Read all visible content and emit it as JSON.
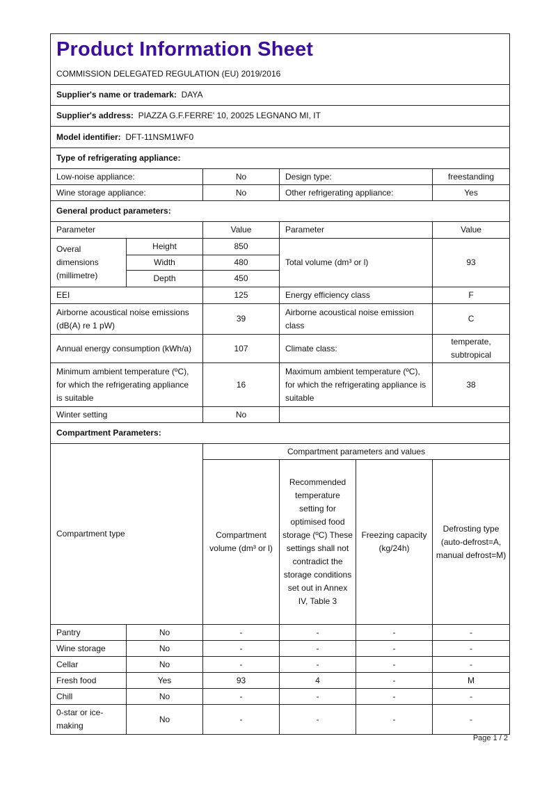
{
  "header": {
    "title": "Product Information Sheet",
    "regulation": "COMMISSION DELEGATED REGULATION (EU) 2019/2016"
  },
  "supplier": {
    "name_label": "Supplier's name or trademark:",
    "name": "DAYA",
    "address_label": "Supplier's address:",
    "address": "PIAZZA G.F.FERRE' 10, 20025 LEGNANO MI, IT",
    "model_label": "Model identifier:",
    "model": "DFT-11NSM1WF0"
  },
  "type": {
    "heading": "Type of refrigerating appliance:",
    "low_noise_label": "Low-noise appliance:",
    "low_noise": "No",
    "design_label": "Design type:",
    "design": "freestanding",
    "wine_label": "Wine storage appliance:",
    "wine": "No",
    "other_label": "Other refrigerating appliance:",
    "other": "Yes"
  },
  "general": {
    "heading": "General product parameters:",
    "col_parameter": "Parameter",
    "col_value": "Value",
    "dims_label": "Overal dimensions (millimetre)",
    "height_label": "Height",
    "height": "850",
    "width_label": "Width",
    "width": "480",
    "depth_label": "Depth",
    "depth": "450",
    "volume_label": "Total volume (dm³ or l)",
    "volume": "93",
    "eei_label": "EEI",
    "eei": "125",
    "eec_label": "Energy efficiency class",
    "eec": "F",
    "noise_label": "Airborne acoustical noise emissions (dB(A) re 1 pW)",
    "noise": "39",
    "noise_class_label": "Airborne acoustical noise emission class",
    "noise_class": "C",
    "aec_label": "Annual energy consumption (kWh/a)",
    "aec": "107",
    "climate_label": "Climate class:",
    "climate": "temperate, subtropical",
    "min_temp_label": "Minimum ambient temperature (ºC), for which the refrigerating appliance is suitable",
    "min_temp": "16",
    "max_temp_label": "Maximum ambient temperature (ºC), for which the refrigerating appliance is suitable",
    "max_temp": "38",
    "winter_label": "Winter setting",
    "winter": "No"
  },
  "compartments": {
    "heading": "Compartment Parameters:",
    "type_header": "Compartment type",
    "group_header": "Compartment parameters and values",
    "col_volume": "Compartment volume (dm³ or l)",
    "col_temp": "Recommended temperature setting for optimised food storage (ºC) These settings shall not contradict the storage conditions set out in Annex IV, Table 3",
    "col_freezing": "Freezing capacity (kg/24h)",
    "col_defrost": "Defrosting type (auto-defrost=A, manual defrost=M)",
    "rows": [
      {
        "type": "Pantry",
        "present": "No",
        "volume": "-",
        "temp": "-",
        "freezing": "-",
        "defrost": "-"
      },
      {
        "type": "Wine storage",
        "present": "No",
        "volume": "-",
        "temp": "-",
        "freezing": "-",
        "defrost": "-"
      },
      {
        "type": "Cellar",
        "present": "No",
        "volume": "-",
        "temp": "-",
        "freezing": "-",
        "defrost": "-"
      },
      {
        "type": "Fresh food",
        "present": "Yes",
        "volume": "93",
        "temp": "4",
        "freezing": "-",
        "defrost": "M"
      },
      {
        "type": "Chill",
        "present": "No",
        "volume": "-",
        "temp": "-",
        "freezing": "-",
        "defrost": "-"
      },
      {
        "type": "0-star or ice-making",
        "present": "No",
        "volume": "-",
        "temp": "-",
        "freezing": "-",
        "defrost": "-"
      }
    ]
  },
  "footer": {
    "page": "Page 1 / 2"
  }
}
